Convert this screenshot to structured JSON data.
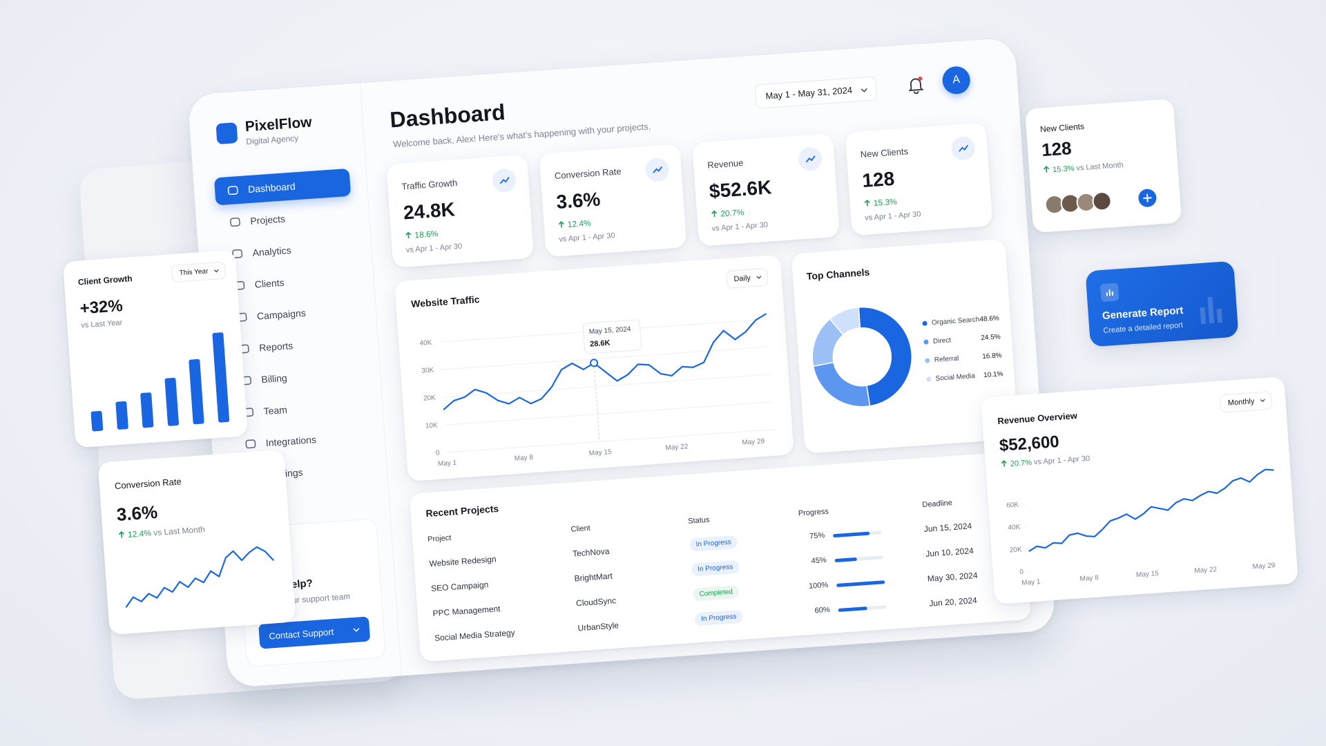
{
  "brand": {
    "name": "PixelFlow",
    "tagline": "Digital Agency"
  },
  "nav": [
    "Dashboard",
    "Projects",
    "Analytics",
    "Clients",
    "Campaigns",
    "Reports",
    "Billing",
    "Team",
    "Integrations",
    "Settings"
  ],
  "header": {
    "title": "Dashboard",
    "subtitle": "Welcome back, Alex! Here's what's happening with your projects.",
    "date_range": "May 1 - May 31, 2024",
    "avatar": "A"
  },
  "stats": [
    {
      "label": "Traffic Growth",
      "value": "24.8K",
      "change": "18.6%",
      "period": "vs Apr 1 - Apr 30"
    },
    {
      "label": "Conversion Rate",
      "value": "3.6%",
      "change": "12.4%",
      "period": "vs Apr 1 - Apr 30"
    },
    {
      "label": "Revenue",
      "value": "$52.6K",
      "change": "20.7%",
      "period": "vs Apr 1 - Apr 30"
    },
    {
      "label": "New Clients",
      "value": "128",
      "change": "15.3%",
      "period": "vs Apr 1 - Apr 30"
    }
  ],
  "help": {
    "title": "Need Help?",
    "text": "Contact our support team",
    "button": "Contact Support"
  },
  "projects": {
    "title": "Recent Projects",
    "columns": [
      "Project",
      "Client",
      "Status",
      "Progress",
      "Deadline"
    ],
    "rows": [
      {
        "project": "Website Redesign",
        "client": "TechNova",
        "status": "In Progress",
        "status_color": "#1a66e0",
        "progress": 75,
        "progress_label": "75%",
        "deadline": "Jun 15, 2024"
      },
      {
        "project": "SEO Campaign",
        "client": "BrightMart",
        "status": "In Progress",
        "status_color": "#1a66e0",
        "progress": 45,
        "progress_label": "45%",
        "deadline": "Jun 10, 2024"
      },
      {
        "project": "PPC Management",
        "client": "CloudSync",
        "status": "Completed",
        "status_color": "#1f9d55",
        "progress": 100,
        "progress_label": "100%",
        "deadline": "May 30, 2024"
      },
      {
        "project": "Social Media Strategy",
        "client": "UrbanStyle",
        "status": "In Progress",
        "status_color": "#1a66e0",
        "progress": 60,
        "progress_label": "60%",
        "deadline": "Jun 20, 2024"
      }
    ]
  },
  "new_clients_card": {
    "title": "New Clients",
    "value": "128",
    "change": "15.3%",
    "period": "vs Last Month"
  },
  "generate_report": {
    "title": "Generate Report",
    "text": "Create a detailed report"
  },
  "chart_data": [
    {
      "type": "line",
      "title": "Website Traffic",
      "filter": "Daily",
      "color": "#1a66e0",
      "grid": true,
      "categories": [
        "May 1",
        null,
        null,
        null,
        null,
        null,
        null,
        "May 8",
        null,
        null,
        null,
        null,
        null,
        null,
        "May 15",
        null,
        null,
        null,
        null,
        null,
        null,
        "May 22",
        null,
        null,
        null,
        null,
        null,
        null,
        "May 29",
        null,
        null
      ],
      "values": [
        15500,
        18500,
        19500,
        22000,
        20500,
        17500,
        16000,
        18000,
        15500,
        17000,
        21000,
        27000,
        29000,
        26500,
        28600,
        25000,
        21500,
        23500,
        27000,
        26500,
        23000,
        22000,
        25000,
        24500,
        26000,
        33000,
        37000,
        33500,
        36000,
        40000,
        42000
      ],
      "value_labels": [
        null,
        null,
        null,
        null,
        null,
        null,
        null,
        null,
        null,
        null,
        null,
        null,
        null,
        null,
        "28.6K",
        null,
        null,
        null,
        null,
        null,
        null,
        null,
        null,
        null,
        null,
        null,
        null,
        null,
        null,
        null,
        null
      ],
      "tooltip_title": "May 15, 2024",
      "ylim": [
        0,
        45000
      ],
      "yticks": [
        0,
        {
          "value": 10000,
          "label": "10K"
        },
        {
          "value": 20000,
          "label": "20K"
        },
        {
          "value": 30000,
          "label": "30K"
        },
        {
          "value": 40000,
          "label": "40K"
        }
      ]
    },
    {
      "type": "donut",
      "title": "Top Channels",
      "categories": [
        "Organic Search",
        "Direct",
        "Referral",
        "Social Media"
      ],
      "values": [
        48.6,
        24.5,
        16.8,
        10.1
      ],
      "value_labels": [
        "48.6%",
        "24.5%",
        "16.8%",
        "10.1%"
      ],
      "colors": [
        "#1a66e0",
        "#5c96ee",
        "#9cc0f6",
        "#cfe0fb"
      ]
    },
    {
      "type": "line",
      "title": "Revenue Overview",
      "filter": "Monthly",
      "headline": "$52,600",
      "change": "20.7%",
      "period": "vs Apr 1 - Apr 30",
      "color": "#1a66e0",
      "grid": false,
      "categories": [
        "May 1",
        null,
        null,
        null,
        null,
        null,
        null,
        "May 8",
        null,
        null,
        null,
        null,
        null,
        null,
        "May 15",
        null,
        null,
        null,
        null,
        null,
        null,
        "May 22",
        null,
        null,
        null,
        null,
        null,
        null,
        "May 29",
        null,
        null
      ],
      "values": [
        18000,
        22000,
        20000,
        24000,
        23000,
        30000,
        31000,
        28000,
        27000,
        33000,
        40000,
        42000,
        45000,
        40000,
        44000,
        50000,
        48000,
        46000,
        52000,
        55000,
        53000,
        57000,
        60000,
        58000,
        62000,
        68000,
        70000,
        66000,
        72000,
        76000,
        75000
      ],
      "ylim": [
        0,
        80000
      ],
      "yticks": [
        0,
        {
          "value": 20000,
          "label": "20K"
        },
        {
          "value": 40000,
          "label": "40K"
        },
        {
          "value": 60000,
          "label": "60K"
        }
      ]
    },
    {
      "type": "bar",
      "title": "Client Growth",
      "filter": "This Year",
      "headline": "+32%",
      "subtitle": "vs Last Year",
      "color": "#1a66e0",
      "values": [
        20,
        28,
        35,
        48,
        65,
        90
      ]
    },
    {
      "type": "line",
      "title": "Conversion Rate",
      "headline": "3.6%",
      "change": "12.4%",
      "subtitle": "vs Last Month",
      "color": "#1a66e0",
      "values": [
        20,
        28,
        24,
        30,
        26,
        34,
        30,
        38,
        33,
        40,
        36,
        45,
        40,
        55,
        60,
        52,
        58,
        62,
        58,
        50
      ]
    }
  ]
}
